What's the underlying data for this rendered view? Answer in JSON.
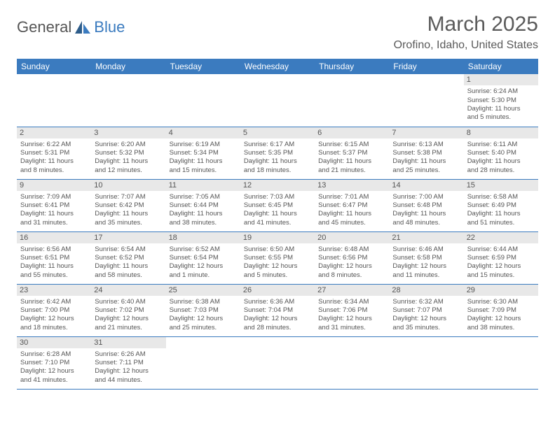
{
  "brand": {
    "part1": "General",
    "part2": "Blue"
  },
  "title": "March 2025",
  "location": "Orofino, Idaho, United States",
  "colors": {
    "header_bg": "#3b7bbf",
    "header_text": "#ffffff",
    "daynum_bg": "#e8e8e8",
    "row_divider": "#3b7bbf",
    "body_text": "#555555",
    "page_bg": "#ffffff"
  },
  "weekdays": [
    "Sunday",
    "Monday",
    "Tuesday",
    "Wednesday",
    "Thursday",
    "Friday",
    "Saturday"
  ],
  "weeks": [
    [
      null,
      null,
      null,
      null,
      null,
      null,
      {
        "n": "1",
        "sr": "Sunrise: 6:24 AM",
        "ss": "Sunset: 5:30 PM",
        "d1": "Daylight: 11 hours",
        "d2": "and 5 minutes."
      }
    ],
    [
      {
        "n": "2",
        "sr": "Sunrise: 6:22 AM",
        "ss": "Sunset: 5:31 PM",
        "d1": "Daylight: 11 hours",
        "d2": "and 8 minutes."
      },
      {
        "n": "3",
        "sr": "Sunrise: 6:20 AM",
        "ss": "Sunset: 5:32 PM",
        "d1": "Daylight: 11 hours",
        "d2": "and 12 minutes."
      },
      {
        "n": "4",
        "sr": "Sunrise: 6:19 AM",
        "ss": "Sunset: 5:34 PM",
        "d1": "Daylight: 11 hours",
        "d2": "and 15 minutes."
      },
      {
        "n": "5",
        "sr": "Sunrise: 6:17 AM",
        "ss": "Sunset: 5:35 PM",
        "d1": "Daylight: 11 hours",
        "d2": "and 18 minutes."
      },
      {
        "n": "6",
        "sr": "Sunrise: 6:15 AM",
        "ss": "Sunset: 5:37 PM",
        "d1": "Daylight: 11 hours",
        "d2": "and 21 minutes."
      },
      {
        "n": "7",
        "sr": "Sunrise: 6:13 AM",
        "ss": "Sunset: 5:38 PM",
        "d1": "Daylight: 11 hours",
        "d2": "and 25 minutes."
      },
      {
        "n": "8",
        "sr": "Sunrise: 6:11 AM",
        "ss": "Sunset: 5:40 PM",
        "d1": "Daylight: 11 hours",
        "d2": "and 28 minutes."
      }
    ],
    [
      {
        "n": "9",
        "sr": "Sunrise: 7:09 AM",
        "ss": "Sunset: 6:41 PM",
        "d1": "Daylight: 11 hours",
        "d2": "and 31 minutes."
      },
      {
        "n": "10",
        "sr": "Sunrise: 7:07 AM",
        "ss": "Sunset: 6:42 PM",
        "d1": "Daylight: 11 hours",
        "d2": "and 35 minutes."
      },
      {
        "n": "11",
        "sr": "Sunrise: 7:05 AM",
        "ss": "Sunset: 6:44 PM",
        "d1": "Daylight: 11 hours",
        "d2": "and 38 minutes."
      },
      {
        "n": "12",
        "sr": "Sunrise: 7:03 AM",
        "ss": "Sunset: 6:45 PM",
        "d1": "Daylight: 11 hours",
        "d2": "and 41 minutes."
      },
      {
        "n": "13",
        "sr": "Sunrise: 7:01 AM",
        "ss": "Sunset: 6:47 PM",
        "d1": "Daylight: 11 hours",
        "d2": "and 45 minutes."
      },
      {
        "n": "14",
        "sr": "Sunrise: 7:00 AM",
        "ss": "Sunset: 6:48 PM",
        "d1": "Daylight: 11 hours",
        "d2": "and 48 minutes."
      },
      {
        "n": "15",
        "sr": "Sunrise: 6:58 AM",
        "ss": "Sunset: 6:49 PM",
        "d1": "Daylight: 11 hours",
        "d2": "and 51 minutes."
      }
    ],
    [
      {
        "n": "16",
        "sr": "Sunrise: 6:56 AM",
        "ss": "Sunset: 6:51 PM",
        "d1": "Daylight: 11 hours",
        "d2": "and 55 minutes."
      },
      {
        "n": "17",
        "sr": "Sunrise: 6:54 AM",
        "ss": "Sunset: 6:52 PM",
        "d1": "Daylight: 11 hours",
        "d2": "and 58 minutes."
      },
      {
        "n": "18",
        "sr": "Sunrise: 6:52 AM",
        "ss": "Sunset: 6:54 PM",
        "d1": "Daylight: 12 hours",
        "d2": "and 1 minute."
      },
      {
        "n": "19",
        "sr": "Sunrise: 6:50 AM",
        "ss": "Sunset: 6:55 PM",
        "d1": "Daylight: 12 hours",
        "d2": "and 5 minutes."
      },
      {
        "n": "20",
        "sr": "Sunrise: 6:48 AM",
        "ss": "Sunset: 6:56 PM",
        "d1": "Daylight: 12 hours",
        "d2": "and 8 minutes."
      },
      {
        "n": "21",
        "sr": "Sunrise: 6:46 AM",
        "ss": "Sunset: 6:58 PM",
        "d1": "Daylight: 12 hours",
        "d2": "and 11 minutes."
      },
      {
        "n": "22",
        "sr": "Sunrise: 6:44 AM",
        "ss": "Sunset: 6:59 PM",
        "d1": "Daylight: 12 hours",
        "d2": "and 15 minutes."
      }
    ],
    [
      {
        "n": "23",
        "sr": "Sunrise: 6:42 AM",
        "ss": "Sunset: 7:00 PM",
        "d1": "Daylight: 12 hours",
        "d2": "and 18 minutes."
      },
      {
        "n": "24",
        "sr": "Sunrise: 6:40 AM",
        "ss": "Sunset: 7:02 PM",
        "d1": "Daylight: 12 hours",
        "d2": "and 21 minutes."
      },
      {
        "n": "25",
        "sr": "Sunrise: 6:38 AM",
        "ss": "Sunset: 7:03 PM",
        "d1": "Daylight: 12 hours",
        "d2": "and 25 minutes."
      },
      {
        "n": "26",
        "sr": "Sunrise: 6:36 AM",
        "ss": "Sunset: 7:04 PM",
        "d1": "Daylight: 12 hours",
        "d2": "and 28 minutes."
      },
      {
        "n": "27",
        "sr": "Sunrise: 6:34 AM",
        "ss": "Sunset: 7:06 PM",
        "d1": "Daylight: 12 hours",
        "d2": "and 31 minutes."
      },
      {
        "n": "28",
        "sr": "Sunrise: 6:32 AM",
        "ss": "Sunset: 7:07 PM",
        "d1": "Daylight: 12 hours",
        "d2": "and 35 minutes."
      },
      {
        "n": "29",
        "sr": "Sunrise: 6:30 AM",
        "ss": "Sunset: 7:09 PM",
        "d1": "Daylight: 12 hours",
        "d2": "and 38 minutes."
      }
    ],
    [
      {
        "n": "30",
        "sr": "Sunrise: 6:28 AM",
        "ss": "Sunset: 7:10 PM",
        "d1": "Daylight: 12 hours",
        "d2": "and 41 minutes."
      },
      {
        "n": "31",
        "sr": "Sunrise: 6:26 AM",
        "ss": "Sunset: 7:11 PM",
        "d1": "Daylight: 12 hours",
        "d2": "and 44 minutes."
      },
      null,
      null,
      null,
      null,
      null
    ]
  ]
}
